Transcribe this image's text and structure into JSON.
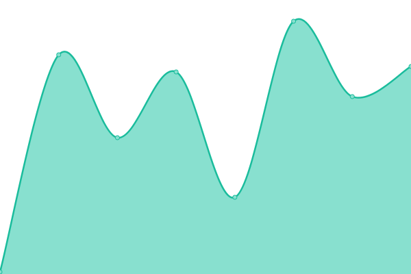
{
  "chart_data": {
    "type": "area",
    "categories": [
      null,
      null,
      null,
      null,
      null,
      null,
      null,
      null
    ],
    "series": [
      {
        "color": "#1abc9c",
        "fill": "#88e0cf",
        "values": [
          3,
          320,
          199,
          295,
          112,
          369,
          259,
          303
        ]
      }
    ],
    "ylim": [
      0,
      400
    ]
  }
}
